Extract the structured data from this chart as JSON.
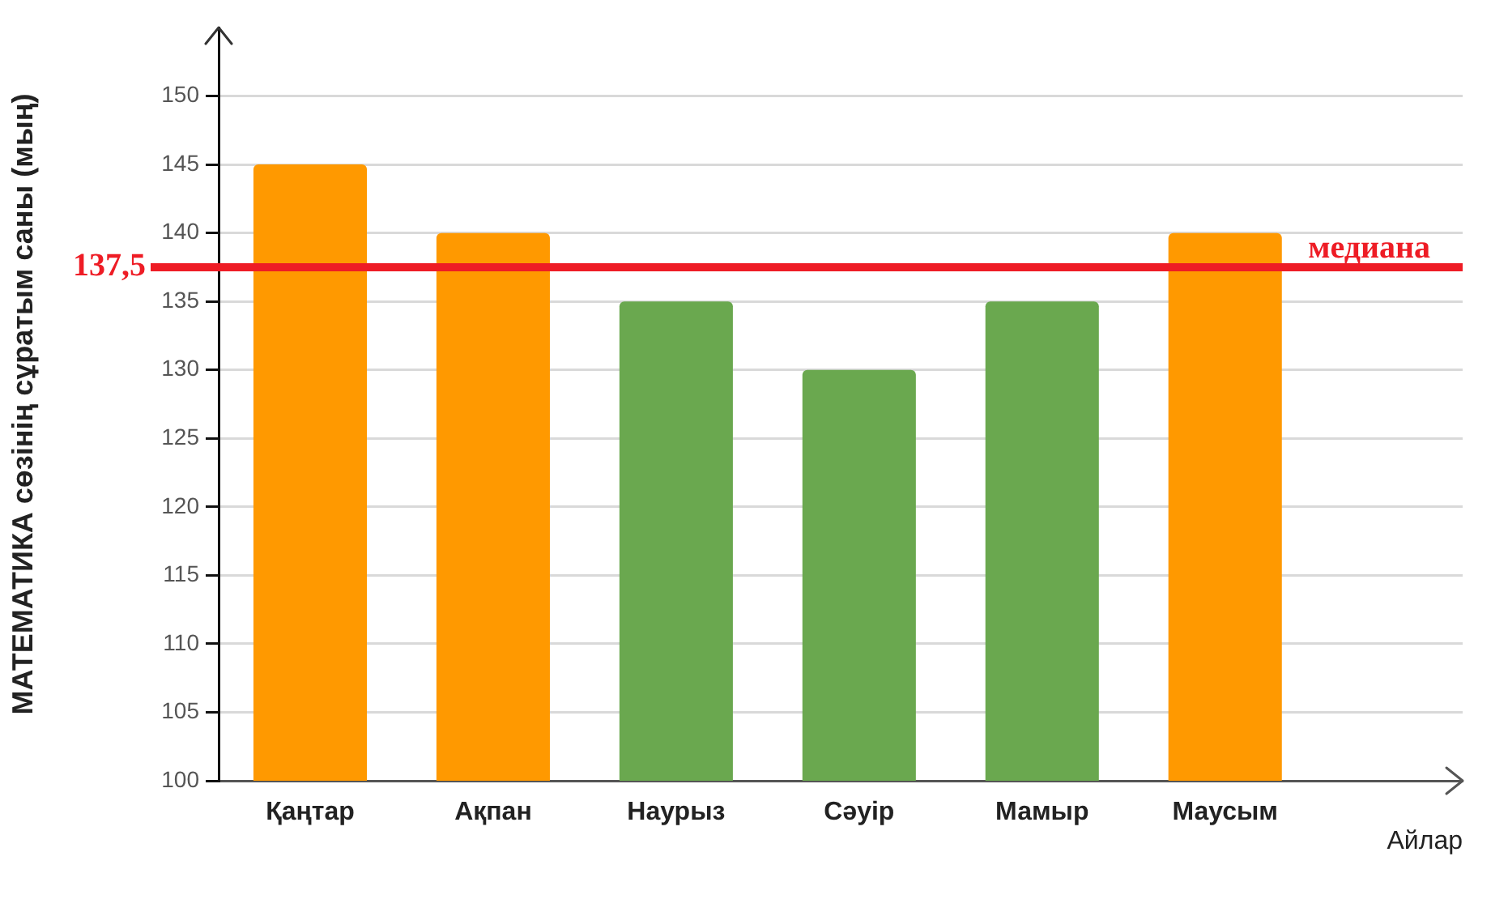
{
  "chart_data": {
    "type": "bar",
    "categories": [
      "Қаңтар",
      "Ақпан",
      "Наурыз",
      "Сәуір",
      "Мамыр",
      "Маусым"
    ],
    "values": [
      145,
      140,
      135,
      130,
      135,
      140
    ],
    "colors": [
      "#ff9900",
      "#ff9900",
      "#6aa84f",
      "#6aa84f",
      "#6aa84f",
      "#ff9900"
    ],
    "ylabel": "МАТЕМАТИКА сөзінің сұратым саны (мың)",
    "xlabel": "Айлар",
    "ylim": [
      100,
      155
    ],
    "yticks": [
      100,
      105,
      110,
      115,
      120,
      125,
      130,
      135,
      140,
      145,
      150
    ],
    "grid": "y",
    "ref_lines": [
      {
        "axis": "y",
        "value": 137.5,
        "label": "медиана",
        "color": "#ee1c25"
      }
    ],
    "annotations": [
      "137,5"
    ]
  }
}
